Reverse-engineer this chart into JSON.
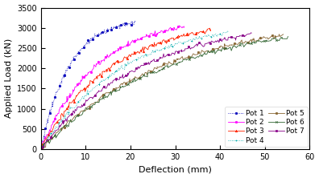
{
  "title": "",
  "xlabel": "Deflection (mm)",
  "ylabel": "Applied Load (kN)",
  "xlim": [
    0,
    60
  ],
  "ylim": [
    0,
    3500
  ],
  "xticks": [
    0,
    10,
    20,
    30,
    40,
    50,
    60
  ],
  "yticks": [
    0,
    500,
    1000,
    1500,
    2000,
    2500,
    3000,
    3500
  ],
  "pots": [
    {
      "name": "Pot 1",
      "color": "#0000BB",
      "linestyle": "dotted",
      "marker": "o",
      "max_defl": 21.0,
      "shape": 0.3,
      "seed": 1
    },
    {
      "name": "Pot 2",
      "color": "#FF00FF",
      "linestyle": "solid",
      "marker": "o",
      "max_defl": 32.0,
      "shape": 0.38,
      "seed": 2
    },
    {
      "name": "Pot 3",
      "color": "#FF2200",
      "linestyle": "solid",
      "marker": "^",
      "max_defl": 38.0,
      "shape": 0.42,
      "seed": 3
    },
    {
      "name": "Pot 4",
      "color": "#00AAAA",
      "linestyle": "dotted",
      "marker": "+",
      "max_defl": 42.0,
      "shape": 0.45,
      "seed": 4
    },
    {
      "name": "Pot 5",
      "color": "#886633",
      "linestyle": "solid",
      "marker": "o",
      "max_defl": 54.0,
      "shape": 0.5,
      "seed": 5
    },
    {
      "name": "Pot 6",
      "color": "#336633",
      "linestyle": "solid",
      "marker": "x",
      "max_defl": 55.0,
      "shape": 0.52,
      "seed": 6
    },
    {
      "name": "Pot 7",
      "color": "#880088",
      "linestyle": "solid",
      "marker": "s",
      "max_defl": 47.0,
      "shape": 0.48,
      "seed": 7
    }
  ],
  "max_load": 3250,
  "background_color": "#ffffff",
  "legend_ncol": 2,
  "legend_fontsize": 6.5
}
